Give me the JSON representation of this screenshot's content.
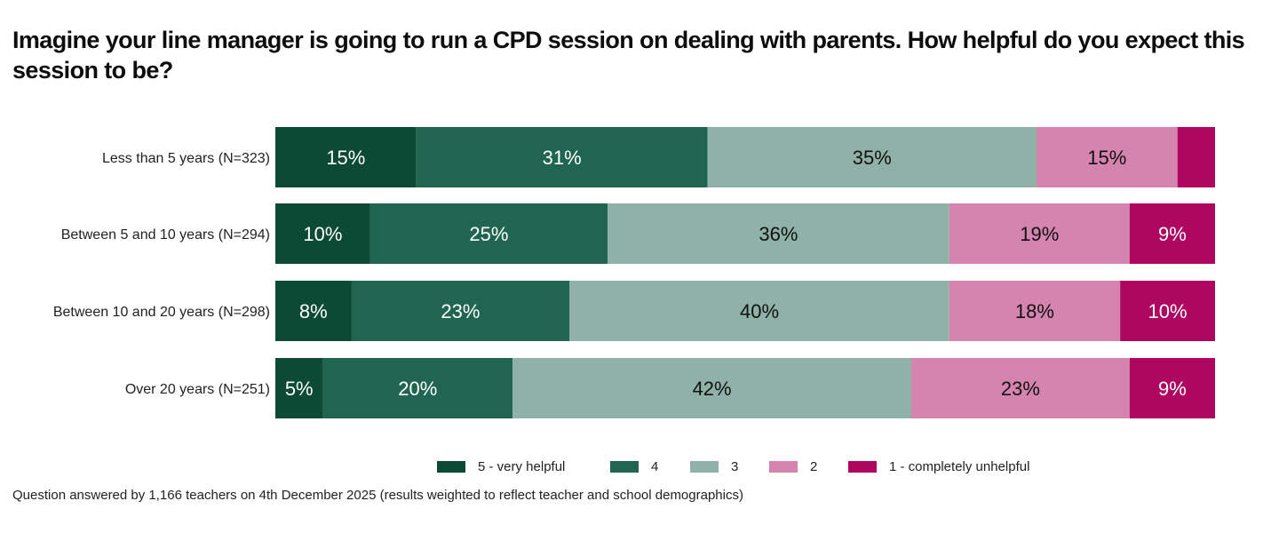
{
  "title": "Imagine your line manager is going to run a CPD session on dealing with parents. How helpful do you expect this session to be?",
  "footnote": "Question answered by 1,166 teachers on 4th December 2025 (results weighted to reflect teacher and school demographics)",
  "chart_data": {
    "type": "bar",
    "orientation": "horizontal",
    "stacked": true,
    "normalized": true,
    "title": "Imagine your line manager is going to run a CPD session on dealing with parents. How helpful do you expect this session to be?",
    "xlabel": "",
    "ylabel": "",
    "xlim": [
      0,
      100
    ],
    "grid": false,
    "legend_position": "bottom",
    "categories": [
      "Less than 5 years (N=323)",
      "Between 5 and 10 years (N=294)",
      "Between 10 and 20 years (N=298)",
      "Over 20 years (N=251)"
    ],
    "series": [
      {
        "name": "5 - very helpful",
        "color": "#0c4a36",
        "label_color": "#ffffff",
        "values": [
          15,
          10,
          8,
          5
        ]
      },
      {
        "name": "4",
        "color": "#206550",
        "label_color": "#ffffff",
        "values": [
          31,
          25,
          23,
          20
        ]
      },
      {
        "name": "3",
        "color": "#8fb1a7",
        "label_color": "#111111",
        "values": [
          35,
          36,
          40,
          42
        ]
      },
      {
        "name": "2",
        "color": "#d484af",
        "label_color": "#111111",
        "values": [
          15,
          19,
          18,
          23
        ]
      },
      {
        "name": "1 - completely unhelpful",
        "color": "#af0761",
        "label_color": "#ffffff",
        "values": [
          4,
          9,
          10,
          9
        ]
      }
    ],
    "data_labels": [
      [
        "15%",
        "31%",
        "35%",
        "15%",
        ""
      ],
      [
        "10%",
        "25%",
        "36%",
        "19%",
        "9%"
      ],
      [
        "8%",
        "23%",
        "40%",
        "18%",
        "10%"
      ],
      [
        "5%",
        "20%",
        "42%",
        "23%",
        "9%"
      ]
    ]
  }
}
